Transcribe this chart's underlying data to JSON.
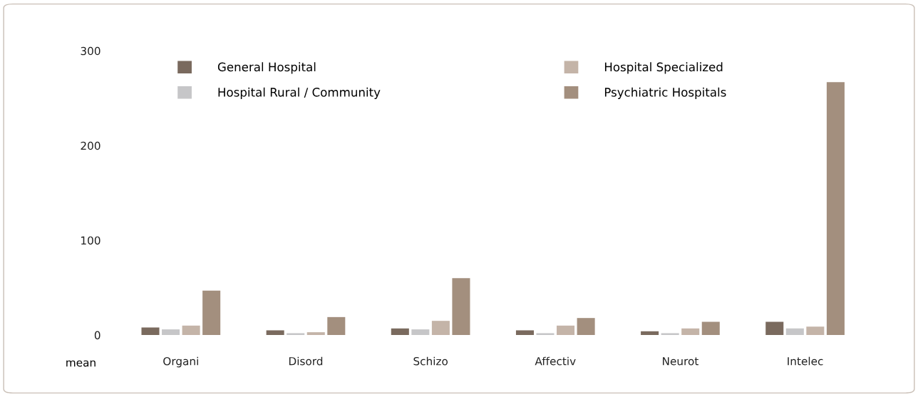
{
  "chart_data": {
    "type": "bar",
    "xlabel": "mean",
    "categories": [
      "Organi",
      "Disord",
      "Schizo",
      "Affectiv",
      "Neurot",
      "Intelec"
    ],
    "series": [
      {
        "name": "General Hospital",
        "color": "#7a6a5e",
        "values": [
          8,
          5,
          7,
          5,
          4,
          14
        ]
      },
      {
        "name": "Hospital Rural / Community",
        "color": "#c6c6c8",
        "values": [
          6,
          2,
          6,
          2,
          2,
          7
        ]
      },
      {
        "name": "Hospital Specialized",
        "color": "#c4b4a8",
        "values": [
          10,
          3,
          15,
          10,
          7,
          9
        ]
      },
      {
        "name": "Psychiatric Hospitals",
        "color": "#a38f7e",
        "values": [
          47,
          19,
          60,
          18,
          14,
          267
        ]
      }
    ],
    "ylim": [
      0,
      300
    ],
    "yticks": [
      0,
      100,
      200,
      300
    ],
    "grid": false,
    "legend": "top"
  }
}
